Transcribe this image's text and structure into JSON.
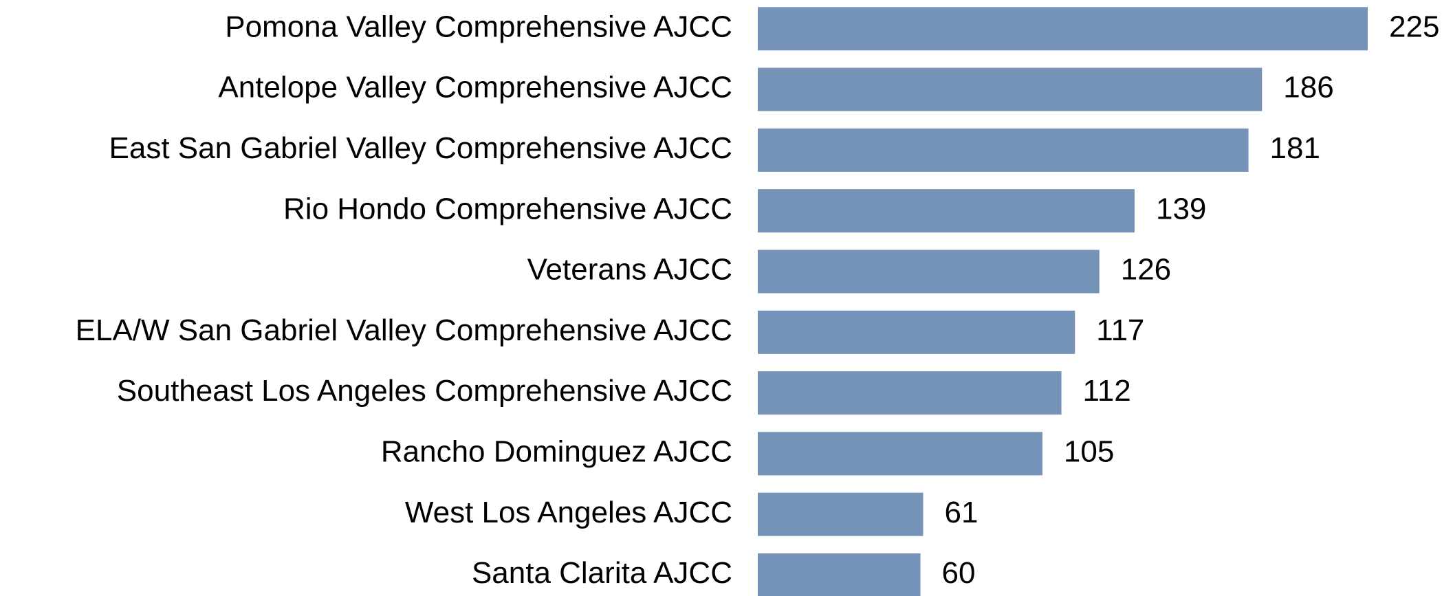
{
  "chart_data": {
    "type": "bar",
    "orientation": "horizontal",
    "color": "#7592b8",
    "categories": [
      "Pomona Valley Comprehensive AJCC",
      "Antelope Valley Comprehensive AJCC",
      "East San Gabriel Valley Comprehensive AJCC",
      "Rio Hondo Comprehensive AJCC",
      "Veterans AJCC",
      "ELA/W San Gabriel Valley Comprehensive AJCC",
      "Southeast Los Angeles Comprehensive AJCC",
      "Rancho Dominguez AJCC",
      "West Los Angeles AJCC",
      "Santa Clarita AJCC"
    ],
    "values": [
      225,
      186,
      181,
      139,
      126,
      117,
      112,
      105,
      61,
      60
    ]
  }
}
